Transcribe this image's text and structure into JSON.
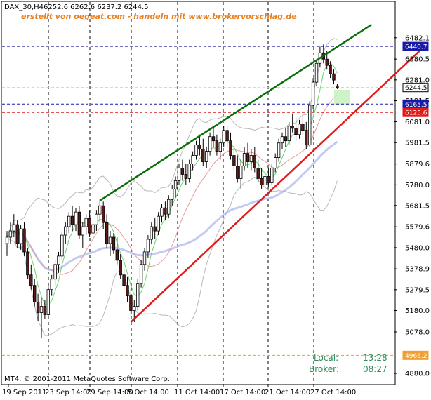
{
  "header": {
    "symbol": "DAX_30,H4",
    "ohlc": "6252.6 6262.6 6237.2 6244.5",
    "watermark": "erstellt von oegeat.com - handeln mit www.brokervorschlag.de"
  },
  "footer": {
    "copyright": "MT4, © 2001-2011 MetaQuotes Software Corp.",
    "local_label": "Local:",
    "local_time": "13:28",
    "broker_label": "Broker:",
    "broker_time": "08:27"
  },
  "chart_data": {
    "type": "candlestick",
    "ylim": [
      4830,
      6545
    ],
    "price_ticks": [
      "6482.1",
      "6380.5",
      "6281.0",
      "6181.5",
      "6081.0",
      "5981.5",
      "5879.6",
      "5780.0",
      "5681.5",
      "5579.6",
      "5480.0",
      "5378.9",
      "5279.5",
      "5180.0",
      "5078.0",
      "4880.0"
    ],
    "date_labels": [
      "19 Sep 2011",
      "23 Sep 14:00",
      "29 Sep 14:00",
      "5 Oct 14:00",
      "11 Oct 14:00",
      "17 Oct 14:00",
      "21 Oct 14:00",
      "27 Oct 14:00"
    ],
    "price_tags": [
      {
        "value": 6440.7,
        "label": "6440.7",
        "color": "#1a1aa8",
        "line": "#1a1aa8"
      },
      {
        "value": 6244.5,
        "label": "6244.5",
        "color": "#ffffff",
        "text_color": "#000000",
        "line": "#c8c8c8"
      },
      {
        "value": 6165.5,
        "label": "6165.5",
        "color": "#1a1aa8",
        "line": "#1a1aa8"
      },
      {
        "value": 6125.6,
        "label": "6125.6",
        "color": "#e11a1a",
        "line": "#e11a1a"
      },
      {
        "value": 4966.2,
        "label": "4966.2",
        "color": "#f0a030",
        "line": "#f0a030"
      }
    ],
    "trendlines": [
      {
        "name": "upper-trendline",
        "color": "#0a6e0a",
        "from": [
          27,
          5705
        ],
        "to": [
          106,
          6545
        ]
      },
      {
        "name": "lower-trendline",
        "color": "#e11a1a",
        "from": [
          36,
          5125
        ],
        "to": [
          120,
          6420
        ]
      }
    ],
    "grid": "dashed-vertical",
    "candles": [
      {
        "o": 5500,
        "h": 5560,
        "l": 5440,
        "c": 5530
      },
      {
        "o": 5530,
        "h": 5600,
        "l": 5500,
        "c": 5560
      },
      {
        "o": 5560,
        "h": 5640,
        "l": 5530,
        "c": 5590
      },
      {
        "o": 5590,
        "h": 5610,
        "l": 5480,
        "c": 5500
      },
      {
        "o": 5500,
        "h": 5590,
        "l": 5470,
        "c": 5570
      },
      {
        "o": 5570,
        "h": 5600,
        "l": 5440,
        "c": 5460
      },
      {
        "o": 5460,
        "h": 5480,
        "l": 5330,
        "c": 5350
      },
      {
        "o": 5350,
        "h": 5400,
        "l": 5280,
        "c": 5300
      },
      {
        "o": 5300,
        "h": 5330,
        "l": 5200,
        "c": 5220
      },
      {
        "o": 5220,
        "h": 5260,
        "l": 5130,
        "c": 5170
      },
      {
        "o": 5170,
        "h": 5240,
        "l": 5050,
        "c": 5200
      },
      {
        "o": 5200,
        "h": 5230,
        "l": 5140,
        "c": 5160
      },
      {
        "o": 5160,
        "h": 5300,
        "l": 5140,
        "c": 5280
      },
      {
        "o": 5280,
        "h": 5350,
        "l": 5250,
        "c": 5330
      },
      {
        "o": 5330,
        "h": 5420,
        "l": 5300,
        "c": 5400
      },
      {
        "o": 5400,
        "h": 5460,
        "l": 5360,
        "c": 5440
      },
      {
        "o": 5440,
        "h": 5560,
        "l": 5420,
        "c": 5540
      },
      {
        "o": 5540,
        "h": 5600,
        "l": 5500,
        "c": 5580
      },
      {
        "o": 5580,
        "h": 5650,
        "l": 5550,
        "c": 5630
      },
      {
        "o": 5630,
        "h": 5680,
        "l": 5560,
        "c": 5590
      },
      {
        "o": 5590,
        "h": 5670,
        "l": 5560,
        "c": 5650
      },
      {
        "o": 5650,
        "h": 5680,
        "l": 5520,
        "c": 5540
      },
      {
        "o": 5540,
        "h": 5600,
        "l": 5480,
        "c": 5580
      },
      {
        "o": 5580,
        "h": 5640,
        "l": 5540,
        "c": 5620
      },
      {
        "o": 5620,
        "h": 5660,
        "l": 5530,
        "c": 5550
      },
      {
        "o": 5550,
        "h": 5610,
        "l": 5500,
        "c": 5590
      },
      {
        "o": 5590,
        "h": 5660,
        "l": 5560,
        "c": 5640
      },
      {
        "o": 5640,
        "h": 5710,
        "l": 5600,
        "c": 5680
      },
      {
        "o": 5680,
        "h": 5700,
        "l": 5570,
        "c": 5600
      },
      {
        "o": 5600,
        "h": 5640,
        "l": 5480,
        "c": 5500
      },
      {
        "o": 5500,
        "h": 5560,
        "l": 5440,
        "c": 5530
      },
      {
        "o": 5530,
        "h": 5550,
        "l": 5450,
        "c": 5470
      },
      {
        "o": 5470,
        "h": 5530,
        "l": 5400,
        "c": 5420
      },
      {
        "o": 5420,
        "h": 5450,
        "l": 5330,
        "c": 5350
      },
      {
        "o": 5350,
        "h": 5380,
        "l": 5280,
        "c": 5300
      },
      {
        "o": 5300,
        "h": 5340,
        "l": 5220,
        "c": 5250
      },
      {
        "o": 5250,
        "h": 5290,
        "l": 5150,
        "c": 5180
      },
      {
        "o": 5180,
        "h": 5230,
        "l": 5125,
        "c": 5200
      },
      {
        "o": 5200,
        "h": 5330,
        "l": 5180,
        "c": 5310
      },
      {
        "o": 5310,
        "h": 5420,
        "l": 5290,
        "c": 5400
      },
      {
        "o": 5400,
        "h": 5480,
        "l": 5370,
        "c": 5460
      },
      {
        "o": 5460,
        "h": 5540,
        "l": 5430,
        "c": 5520
      },
      {
        "o": 5520,
        "h": 5600,
        "l": 5500,
        "c": 5580
      },
      {
        "o": 5580,
        "h": 5620,
        "l": 5520,
        "c": 5560
      },
      {
        "o": 5560,
        "h": 5650,
        "l": 5540,
        "c": 5630
      },
      {
        "o": 5630,
        "h": 5690,
        "l": 5600,
        "c": 5670
      },
      {
        "o": 5670,
        "h": 5700,
        "l": 5610,
        "c": 5640
      },
      {
        "o": 5640,
        "h": 5730,
        "l": 5620,
        "c": 5710
      },
      {
        "o": 5710,
        "h": 5780,
        "l": 5680,
        "c": 5760
      },
      {
        "o": 5760,
        "h": 5820,
        "l": 5720,
        "c": 5800
      },
      {
        "o": 5800,
        "h": 5880,
        "l": 5780,
        "c": 5860
      },
      {
        "o": 5860,
        "h": 5900,
        "l": 5800,
        "c": 5830
      },
      {
        "o": 5830,
        "h": 5880,
        "l": 5780,
        "c": 5810
      },
      {
        "o": 5810,
        "h": 5900,
        "l": 5790,
        "c": 5880
      },
      {
        "o": 5880,
        "h": 5940,
        "l": 5850,
        "c": 5920
      },
      {
        "o": 5920,
        "h": 5990,
        "l": 5900,
        "c": 5970
      },
      {
        "o": 5970,
        "h": 6020,
        "l": 5920,
        "c": 5950
      },
      {
        "o": 5950,
        "h": 6000,
        "l": 5870,
        "c": 5890
      },
      {
        "o": 5890,
        "h": 5960,
        "l": 5860,
        "c": 5940
      },
      {
        "o": 5940,
        "h": 6030,
        "l": 5920,
        "c": 6010
      },
      {
        "o": 6010,
        "h": 6050,
        "l": 5960,
        "c": 5990
      },
      {
        "o": 5990,
        "h": 6020,
        "l": 5920,
        "c": 5940
      },
      {
        "o": 5940,
        "h": 6000,
        "l": 5900,
        "c": 5980
      },
      {
        "o": 5980,
        "h": 6060,
        "l": 5960,
        "c": 6040
      },
      {
        "o": 6040,
        "h": 6060,
        "l": 5960,
        "c": 5990
      },
      {
        "o": 5990,
        "h": 6030,
        "l": 5900,
        "c": 5920
      },
      {
        "o": 5920,
        "h": 5960,
        "l": 5850,
        "c": 5870
      },
      {
        "o": 5870,
        "h": 5920,
        "l": 5790,
        "c": 5810
      },
      {
        "o": 5810,
        "h": 5900,
        "l": 5760,
        "c": 5870
      },
      {
        "o": 5870,
        "h": 5960,
        "l": 5850,
        "c": 5930
      },
      {
        "o": 5930,
        "h": 5980,
        "l": 5860,
        "c": 5890
      },
      {
        "o": 5890,
        "h": 5950,
        "l": 5850,
        "c": 5920
      },
      {
        "o": 5920,
        "h": 5960,
        "l": 5840,
        "c": 5860
      },
      {
        "o": 5860,
        "h": 5900,
        "l": 5790,
        "c": 5810
      },
      {
        "o": 5810,
        "h": 5860,
        "l": 5760,
        "c": 5780
      },
      {
        "o": 5780,
        "h": 5840,
        "l": 5750,
        "c": 5820
      },
      {
        "o": 5820,
        "h": 5860,
        "l": 5770,
        "c": 5790
      },
      {
        "o": 5790,
        "h": 5880,
        "l": 5780,
        "c": 5860
      },
      {
        "o": 5860,
        "h": 5930,
        "l": 5840,
        "c": 5910
      },
      {
        "o": 5910,
        "h": 6000,
        "l": 5890,
        "c": 5980
      },
      {
        "o": 5980,
        "h": 6030,
        "l": 5950,
        "c": 6010
      },
      {
        "o": 6010,
        "h": 6050,
        "l": 5960,
        "c": 5990
      },
      {
        "o": 5990,
        "h": 6080,
        "l": 5970,
        "c": 6060
      },
      {
        "o": 6060,
        "h": 6120,
        "l": 6030,
        "c": 6050
      },
      {
        "o": 6050,
        "h": 6100,
        "l": 5990,
        "c": 6020
      },
      {
        "o": 6020,
        "h": 6090,
        "l": 6000,
        "c": 6070
      },
      {
        "o": 6070,
        "h": 6110,
        "l": 6020,
        "c": 6040
      },
      {
        "o": 6040,
        "h": 6080,
        "l": 5950,
        "c": 5970
      },
      {
        "o": 5970,
        "h": 6180,
        "l": 5960,
        "c": 6160
      },
      {
        "o": 6160,
        "h": 6290,
        "l": 6140,
        "c": 6270
      },
      {
        "o": 6270,
        "h": 6380,
        "l": 6250,
        "c": 6360
      },
      {
        "o": 6360,
        "h": 6440,
        "l": 6340,
        "c": 6410
      },
      {
        "o": 6410,
        "h": 6450,
        "l": 6360,
        "c": 6380
      },
      {
        "o": 6380,
        "h": 6420,
        "l": 6330,
        "c": 6350
      },
      {
        "o": 6350,
        "h": 6370,
        "l": 6290,
        "c": 6310
      },
      {
        "o": 6310,
        "h": 6330,
        "l": 6260,
        "c": 6280
      },
      {
        "o": 6252.6,
        "h": 6262.6,
        "l": 6237.2,
        "c": 6244.5
      }
    ]
  },
  "colors": {
    "bull": "#ffffff",
    "bear": "#5a1a1a",
    "wick": "#000000",
    "ma_fast": "#6bd36b",
    "ma_slow": "#e89a9a",
    "ma_long": "#aab4f0",
    "band": "#b8b8b8",
    "grid": "#000000"
  }
}
